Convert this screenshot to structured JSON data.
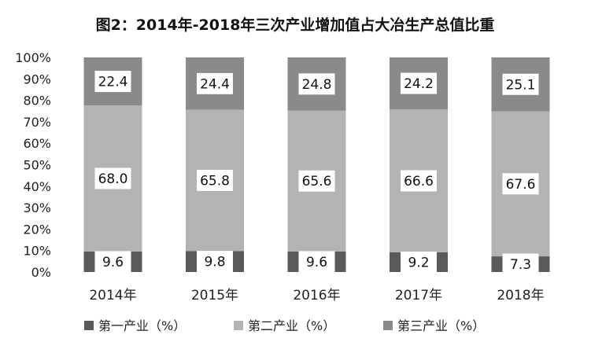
{
  "chart_data": {
    "type": "bar",
    "stacked": true,
    "title": "图2：2014年-2018年三次产业增加值占大冶生产总值比重",
    "categories": [
      "2014年",
      "2015年",
      "2016年",
      "2017年",
      "2018年"
    ],
    "series": [
      {
        "name": "第一产业（%）",
        "values": [
          9.6,
          9.8,
          9.6,
          9.2,
          7.3
        ],
        "labels": [
          "9.6",
          "9.8",
          "9.6",
          "9.2",
          "7.3"
        ],
        "color": "#5a5a5a"
      },
      {
        "name": "第二产业（%）",
        "values": [
          68.0,
          65.8,
          65.6,
          66.6,
          67.6
        ],
        "labels": [
          "68.0",
          "65.8",
          "65.6",
          "66.6",
          "67.6"
        ],
        "color": "#b3b3b3"
      },
      {
        "name": "第三产业（%）",
        "values": [
          22.4,
          24.4,
          24.8,
          24.2,
          25.1
        ],
        "labels": [
          "22.4",
          "24.4",
          "24.8",
          "24.2",
          "25.1"
        ],
        "color": "#8a8a8a"
      }
    ],
    "ylim": [
      0,
      100
    ],
    "yticks": [
      "0%",
      "10%",
      "20%",
      "30%",
      "40%",
      "50%",
      "60%",
      "70%",
      "80%",
      "90%",
      "100%"
    ],
    "grid": false,
    "legend": "bottom"
  }
}
